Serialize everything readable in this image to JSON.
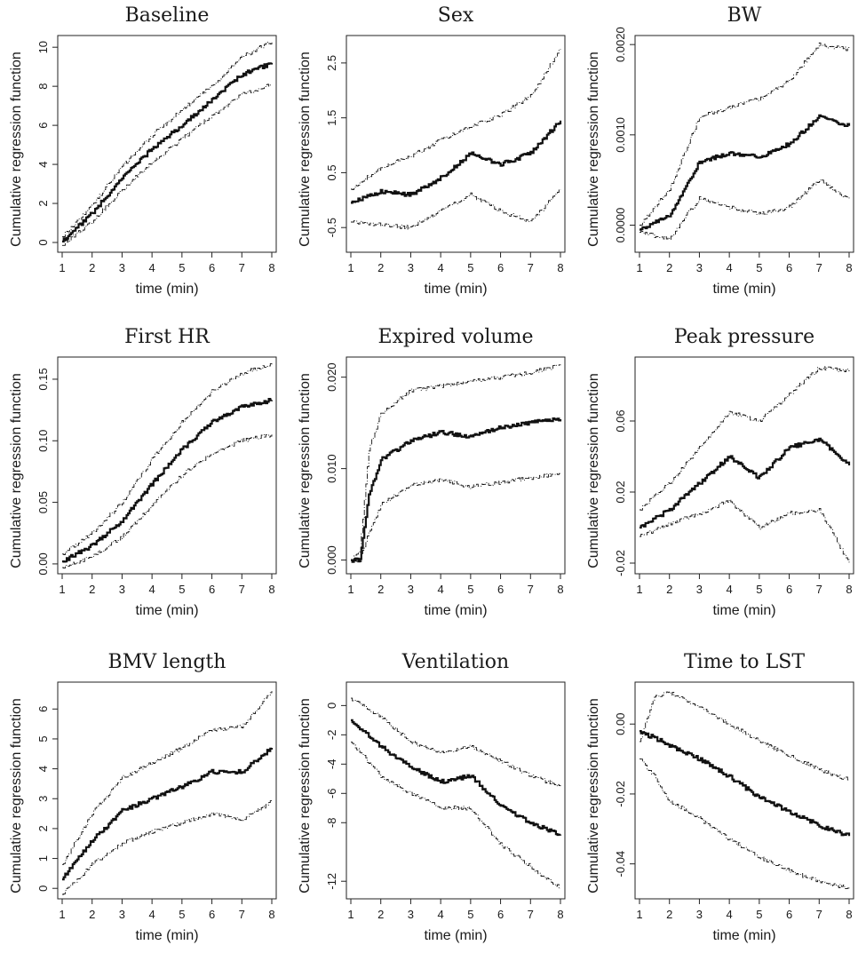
{
  "chart_data": [
    {
      "type": "line",
      "title": "Baseline",
      "xlabel": "time (min)",
      "ylabel": "Cumulative regression function",
      "xlim": [
        1,
        8
      ],
      "ylim": [
        -0.5,
        10.6
      ],
      "xticks": [
        1,
        2,
        3,
        4,
        5,
        6,
        7,
        8
      ],
      "yticks": [
        0,
        2,
        4,
        6,
        8,
        10
      ],
      "x": [
        1,
        2,
        3,
        4,
        5,
        6,
        7,
        8
      ],
      "series": [
        {
          "role": "upper",
          "values": [
            0.3,
            1.9,
            3.9,
            5.5,
            6.8,
            8.0,
            9.5,
            10.3
          ]
        },
        {
          "role": "estimate",
          "values": [
            0.05,
            1.5,
            3.3,
            4.8,
            6.0,
            7.3,
            8.6,
            9.2
          ]
        },
        {
          "role": "lower",
          "values": [
            -0.15,
            1.1,
            2.7,
            4.1,
            5.3,
            6.5,
            7.6,
            8.1
          ]
        }
      ]
    },
    {
      "type": "line",
      "title": "Sex",
      "xlabel": "time (min)",
      "ylabel": "Cumulative regression function",
      "xlim": [
        1,
        8
      ],
      "ylim": [
        -0.95,
        3.0
      ],
      "xticks": [
        1,
        2,
        3,
        4,
        5,
        6,
        7,
        8
      ],
      "yticks": [
        -0.5,
        0.5,
        1.5,
        2.5
      ],
      "x": [
        1,
        2,
        3,
        4,
        5,
        6,
        7,
        8
      ],
      "series": [
        {
          "role": "upper",
          "values": [
            0.2,
            0.6,
            0.8,
            1.1,
            1.35,
            1.55,
            1.9,
            2.75
          ]
        },
        {
          "role": "estimate",
          "values": [
            -0.05,
            0.15,
            0.1,
            0.4,
            0.85,
            0.65,
            0.85,
            1.45
          ]
        },
        {
          "role": "lower",
          "values": [
            -0.4,
            -0.45,
            -0.5,
            -0.2,
            0.1,
            -0.2,
            -0.4,
            0.2
          ]
        }
      ]
    },
    {
      "type": "line",
      "title": "BW",
      "xlabel": "time (min)",
      "ylabel": "Cumulative regression function",
      "xlim": [
        1,
        8
      ],
      "ylim": [
        -0.0003,
        0.0021
      ],
      "xticks": [
        1,
        2,
        3,
        4,
        5,
        6,
        7,
        8
      ],
      "yticks": [
        0.0,
        0.001,
        0.002
      ],
      "ytick_labels": [
        "0.0000",
        "0.0010",
        "0.0020"
      ],
      "x": [
        1,
        2,
        3,
        4,
        5,
        6,
        7,
        8
      ],
      "series": [
        {
          "role": "upper",
          "values": [
            0.0,
            0.0004,
            0.0012,
            0.0013,
            0.0014,
            0.0016,
            0.002,
            0.00195
          ]
        },
        {
          "role": "estimate",
          "values": [
            -5e-05,
            0.0001,
            0.0007,
            0.0008,
            0.00075,
            0.0009,
            0.0012,
            0.0011
          ]
        },
        {
          "role": "lower",
          "values": [
            -8e-05,
            -0.00015,
            0.0003,
            0.0002,
            0.00012,
            0.0002,
            0.0005,
            0.00028
          ]
        }
      ]
    },
    {
      "type": "line",
      "title": "First HR",
      "xlabel": "time (min)",
      "ylabel": "Cumulative regression function",
      "xlim": [
        1,
        8
      ],
      "ylim": [
        -0.008,
        0.168
      ],
      "xticks": [
        1,
        2,
        3,
        4,
        5,
        6,
        7,
        8
      ],
      "yticks": [
        0.0,
        0.05,
        0.1,
        0.15
      ],
      "ytick_labels": [
        "0.00",
        "0.05",
        "0.10",
        "0.15"
      ],
      "x": [
        1,
        2,
        3,
        4,
        5,
        6,
        7,
        8
      ],
      "series": [
        {
          "role": "upper",
          "values": [
            0.008,
            0.025,
            0.05,
            0.085,
            0.115,
            0.14,
            0.155,
            0.162
          ]
        },
        {
          "role": "estimate",
          "values": [
            0.002,
            0.015,
            0.035,
            0.065,
            0.093,
            0.115,
            0.128,
            0.133
          ]
        },
        {
          "role": "lower",
          "values": [
            -0.003,
            0.006,
            0.022,
            0.048,
            0.072,
            0.09,
            0.1,
            0.105
          ]
        }
      ]
    },
    {
      "type": "line",
      "title": "Expired volume",
      "xlabel": "time (min)",
      "ylabel": "Cumulative regression function",
      "xlim": [
        1,
        8
      ],
      "ylim": [
        -0.0015,
        0.0222
      ],
      "xticks": [
        1,
        2,
        3,
        4,
        5,
        6,
        7,
        8
      ],
      "yticks": [
        0.0,
        0.01,
        0.02
      ],
      "ytick_labels": [
        "0.000",
        "0.010",
        "0.020"
      ],
      "x": [
        1,
        1.3,
        1.6,
        2,
        3,
        4,
        5,
        6,
        7,
        8
      ],
      "series": [
        {
          "role": "upper",
          "values": [
            0.0,
            0.001,
            0.012,
            0.016,
            0.0185,
            0.019,
            0.0195,
            0.02,
            0.0205,
            0.0213
          ]
        },
        {
          "role": "estimate",
          "values": [
            0.0,
            0.0,
            0.007,
            0.011,
            0.013,
            0.014,
            0.0135,
            0.0145,
            0.015,
            0.0154
          ]
        },
        {
          "role": "lower",
          "values": [
            0.0,
            0.0,
            0.003,
            0.006,
            0.0082,
            0.0088,
            0.008,
            0.0085,
            0.009,
            0.0095
          ]
        }
      ]
    },
    {
      "type": "line",
      "title": "Peak pressure",
      "xlabel": "time (min)",
      "ylabel": "Cumulative regression function",
      "xlim": [
        1,
        8
      ],
      "ylim": [
        -0.026,
        0.096
      ],
      "xticks": [
        1,
        2,
        3,
        4,
        5,
        6,
        7,
        8
      ],
      "yticks": [
        -0.02,
        0.02,
        0.06
      ],
      "x": [
        1,
        2,
        3,
        4,
        5,
        6,
        7,
        8
      ],
      "series": [
        {
          "role": "upper",
          "values": [
            0.01,
            0.025,
            0.045,
            0.065,
            0.06,
            0.075,
            0.09,
            0.088
          ]
        },
        {
          "role": "estimate",
          "values": [
            0.0,
            0.01,
            0.025,
            0.04,
            0.028,
            0.045,
            0.05,
            0.035
          ]
        },
        {
          "role": "lower",
          "values": [
            -0.005,
            0.002,
            0.008,
            0.015,
            0.0,
            0.008,
            0.01,
            -0.02
          ]
        }
      ]
    },
    {
      "type": "line",
      "title": "BMV length",
      "xlabel": "time (min)",
      "ylabel": "Cumulative regression function",
      "xlim": [
        1,
        8
      ],
      "ylim": [
        -0.35,
        6.9
      ],
      "xticks": [
        1,
        2,
        3,
        4,
        5,
        6,
        7,
        8
      ],
      "yticks": [
        0,
        1,
        2,
        3,
        4,
        5,
        6
      ],
      "x": [
        1,
        2,
        3,
        4,
        5,
        6,
        7,
        8
      ],
      "series": [
        {
          "role": "upper",
          "values": [
            0.8,
            2.5,
            3.7,
            4.2,
            4.7,
            5.3,
            5.4,
            6.6
          ]
        },
        {
          "role": "estimate",
          "values": [
            0.3,
            1.6,
            2.6,
            3.0,
            3.4,
            3.9,
            3.9,
            4.7
          ]
        },
        {
          "role": "lower",
          "values": [
            -0.2,
            0.8,
            1.5,
            1.9,
            2.2,
            2.5,
            2.3,
            2.9
          ]
        }
      ]
    },
    {
      "type": "line",
      "title": "Ventilation",
      "xlabel": "time (min)",
      "ylabel": "Cumulative regression function",
      "xlim": [
        1,
        8
      ],
      "ylim": [
        -13.2,
        1.6
      ],
      "xticks": [
        1,
        2,
        3,
        4,
        5,
        6,
        7,
        8
      ],
      "yticks": [
        0,
        -2,
        -4,
        -6,
        -8,
        -12
      ],
      "x": [
        1,
        2,
        3,
        4,
        5,
        6,
        7,
        8
      ],
      "series": [
        {
          "role": "upper",
          "values": [
            0.5,
            -0.8,
            -2.5,
            -3.2,
            -2.8,
            -3.8,
            -4.8,
            -5.5
          ]
        },
        {
          "role": "estimate",
          "values": [
            -1.0,
            -2.8,
            -4.2,
            -5.2,
            -4.8,
            -6.8,
            -8.0,
            -8.8
          ]
        },
        {
          "role": "lower",
          "values": [
            -2.5,
            -4.8,
            -6.0,
            -7.0,
            -7.0,
            -9.5,
            -11.0,
            -12.5
          ]
        }
      ]
    },
    {
      "type": "line",
      "title": "Time to LST",
      "xlabel": "time (min)",
      "ylabel": "Cumulative regression function",
      "xlim": [
        1,
        8
      ],
      "ylim": [
        -0.05,
        0.012
      ],
      "xticks": [
        1,
        2,
        3,
        4,
        5,
        6,
        7,
        8
      ],
      "yticks": [
        0.0,
        -0.02,
        -0.04
      ],
      "ytick_labels": [
        "0.00",
        "-0.02",
        "-0.04"
      ],
      "x": [
        1,
        1.5,
        2,
        3,
        4,
        5,
        6,
        7,
        8
      ],
      "series": [
        {
          "role": "upper",
          "values": [
            -0.005,
            0.008,
            0.009,
            0.005,
            0.0,
            -0.005,
            -0.009,
            -0.013,
            -0.016
          ]
        },
        {
          "role": "estimate",
          "values": [
            -0.002,
            -0.004,
            -0.006,
            -0.01,
            -0.015,
            -0.021,
            -0.025,
            -0.029,
            -0.032
          ]
        },
        {
          "role": "lower",
          "values": [
            -0.01,
            -0.015,
            -0.022,
            -0.027,
            -0.033,
            -0.038,
            -0.042,
            -0.045,
            -0.047
          ]
        }
      ]
    }
  ]
}
